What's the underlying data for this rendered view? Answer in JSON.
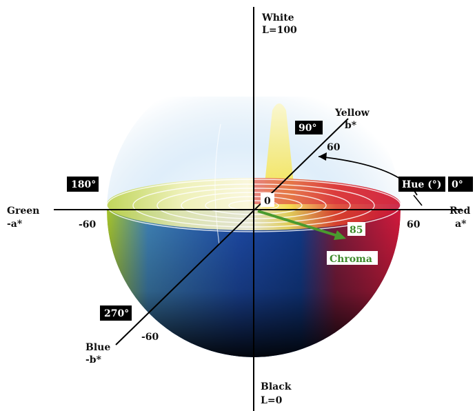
{
  "axes": {
    "white": "White",
    "l100": "L=100",
    "black": "Black",
    "l0": "L=0",
    "yellow": "Yellow",
    "b_pos": "b*",
    "blue": "Blue",
    "b_neg": "-b*",
    "green": "Green",
    "a_neg": "-a*",
    "red": "Red",
    "a_pos": "a*"
  },
  "ticks": {
    "b_pos_60": "60",
    "a_neg_60": "-60",
    "a_pos_60": "60",
    "b_neg_60": "-60",
    "origin": "0"
  },
  "angles": {
    "deg_90": "90°",
    "deg_180": "180°",
    "deg_270": "270°",
    "deg_0": "0°"
  },
  "hue_label": "Hue (°)",
  "chroma": {
    "label": "Chroma",
    "value": "85"
  },
  "colors": {
    "chroma_arrow": "#4a9a2e",
    "label_box": "#000000",
    "axis": "#000000"
  }
}
